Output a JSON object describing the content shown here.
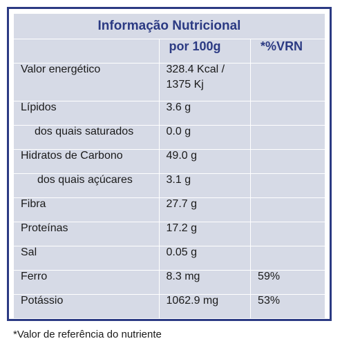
{
  "table": {
    "title": "Informação Nutricional",
    "headers": [
      "",
      "por 100g",
      "*%VRN"
    ],
    "rows": [
      {
        "name": "Valor energético",
        "value_line1": "328.4 Kcal /",
        "value_line2": "1375 Kj",
        "vrn": ""
      },
      {
        "name": "Lípidos",
        "value": "3.6 g",
        "vrn": ""
      },
      {
        "name": "dos quais saturados",
        "value": "0.0 g",
        "vrn": ""
      },
      {
        "name": "Hidratos de Carbono",
        "value": "49.0 g",
        "vrn": ""
      },
      {
        "name": "dos quais açúcares",
        "value": "3.1 g",
        "vrn": ""
      },
      {
        "name": "Fibra",
        "value": "27.7 g",
        "vrn": ""
      },
      {
        "name": "Proteínas",
        "value": "17.2 g",
        "vrn": ""
      },
      {
        "name": "Sal",
        "value": "0.05 g",
        "vrn": ""
      },
      {
        "name": "Ferro",
        "value": "8.3 mg",
        "vrn": "59%"
      },
      {
        "name": "Potássio",
        "value": "1062.9 mg",
        "vrn": "53%"
      }
    ]
  },
  "footnote": "*Valor de referência  do nutriente",
  "colors": {
    "accent": "#2b3a83",
    "cell_background": "#d6dae6"
  }
}
